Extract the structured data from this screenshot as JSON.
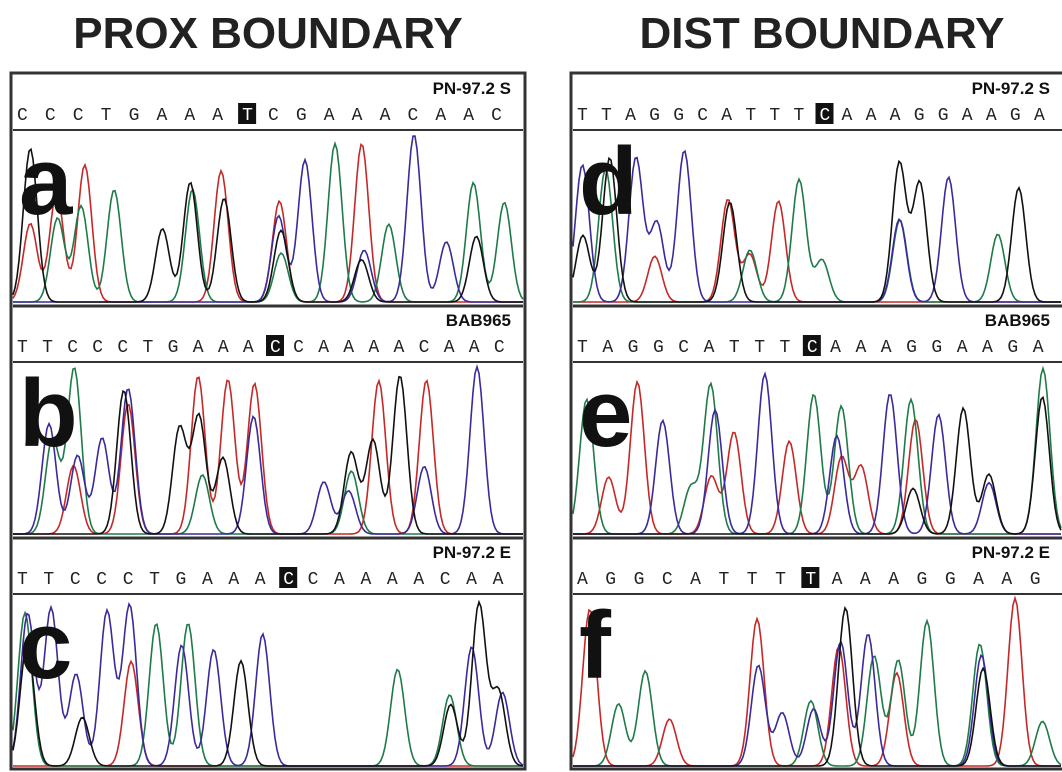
{
  "titles": [
    "PROX BOUNDARY",
    "DIST BOUNDARY"
  ],
  "panels": [
    {
      "label": "a",
      "sample": "PN-97.2 S",
      "sequence_before": "CCCTGAAA",
      "highlighted_base": "T",
      "sequence_after": "CGAAACAAC"
    },
    {
      "label": "b",
      "sample": "BAB965",
      "sequence_before": "TTCCCTGAAA",
      "highlighted_base": "C",
      "sequence_after": "CAAAACAAC"
    },
    {
      "label": "c",
      "sample": "PN-97.2 E",
      "sequence_before": "TTCCCTGAAA",
      "highlighted_base": "C",
      "sequence_after": "CAAAACAA"
    },
    {
      "label": "d",
      "sample": "PN-97.2 S",
      "sequence_before": "TTAGGCATTT",
      "highlighted_base": "C",
      "sequence_after": "AAAGGAAGA"
    },
    {
      "label": "e",
      "sample": "BAB965",
      "sequence_before": "TAGGCATTT",
      "highlighted_base": "C",
      "sequence_after": "AAAGGAAGA"
    },
    {
      "label": "f",
      "sample": "PN-97.2 E",
      "sequence_before": "AGGCATTT",
      "highlighted_base": "T",
      "sequence_after": "AAAGGAAG"
    }
  ]
}
